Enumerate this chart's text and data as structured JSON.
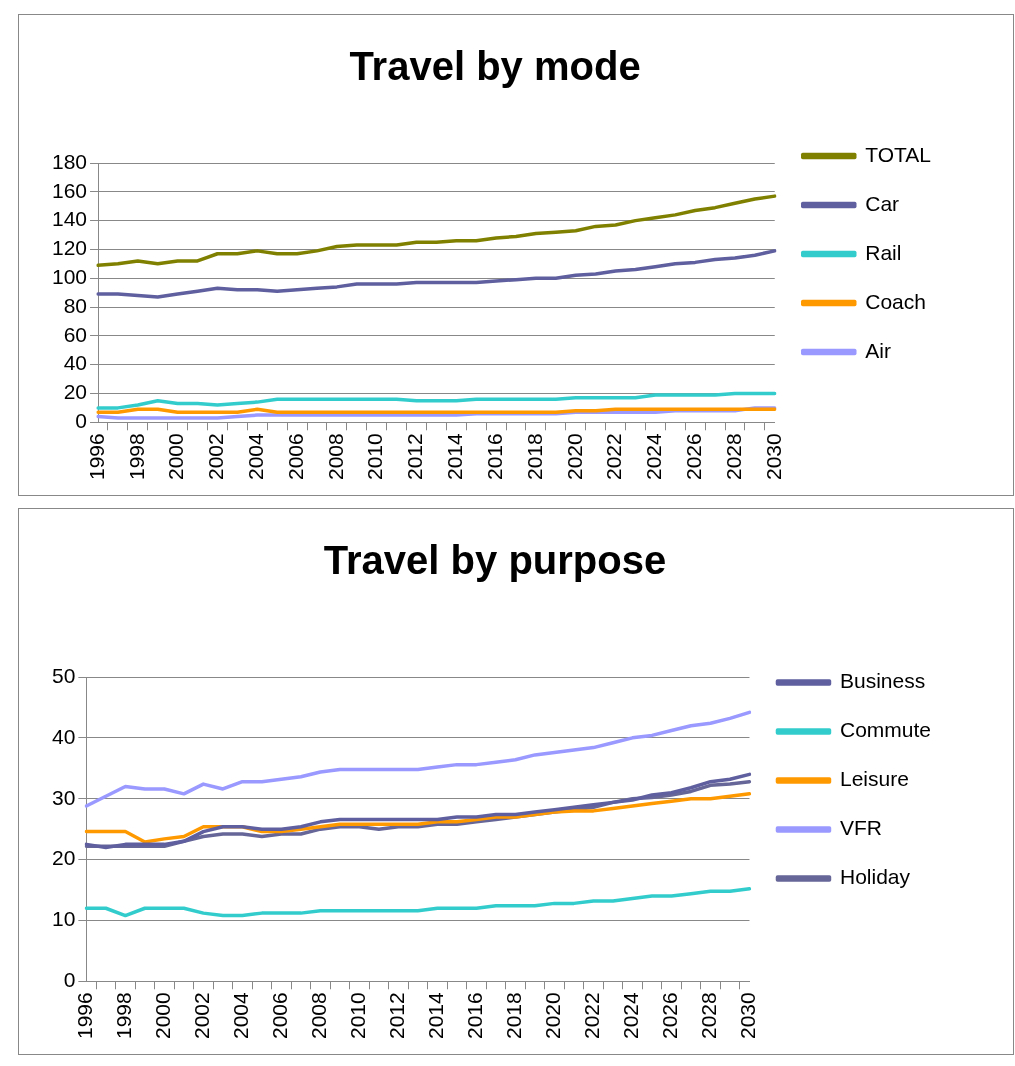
{
  "chart_data": [
    {
      "type": "line",
      "title": "Travel by mode",
      "categories": [
        "1996",
        null,
        "1998",
        null,
        "2000",
        null,
        "2002",
        null,
        "2004",
        null,
        "2006",
        null,
        "2008",
        null,
        "2010",
        null,
        "2012",
        null,
        "2014",
        null,
        "2016",
        null,
        "2018",
        null,
        "2020",
        null,
        "2022",
        null,
        "2024",
        null,
        "2026",
        null,
        "2028",
        null,
        "2030"
      ],
      "series": [
        {
          "name": "TOTAL",
          "color": "#808000",
          "values": [
            109,
            110,
            112,
            110,
            112,
            112,
            117,
            117,
            119,
            117,
            117,
            119,
            122,
            123,
            123,
            123,
            125,
            125,
            126,
            126,
            128,
            129,
            131,
            132,
            133,
            136,
            137,
            140,
            142,
            144,
            147,
            149,
            152,
            155,
            157
          ]
        },
        {
          "name": "Car",
          "color": "#5f5f9f",
          "values": [
            89,
            89,
            88,
            87,
            89,
            91,
            93,
            92,
            92,
            91,
            92,
            93,
            94,
            96,
            96,
            96,
            97,
            97,
            97,
            97,
            98,
            99,
            100,
            100,
            102,
            103,
            105,
            106,
            108,
            110,
            111,
            113,
            114,
            116,
            119
          ]
        },
        {
          "name": "Rail",
          "color": "#33cccc",
          "values": [
            10,
            10,
            12,
            15,
            13,
            13,
            12,
            13,
            14,
            16,
            16,
            16,
            16,
            16,
            16,
            16,
            15,
            15,
            15,
            16,
            16,
            16,
            16,
            16,
            17,
            17,
            17,
            17,
            19,
            19,
            19,
            19,
            20,
            20,
            20
          ]
        },
        {
          "name": "Coach",
          "color": "#ff9900",
          "values": [
            7,
            7,
            9,
            9,
            7,
            7,
            7,
            7,
            9,
            7,
            7,
            7,
            7,
            7,
            7,
            7,
            7,
            7,
            7,
            7,
            7,
            7,
            7,
            7,
            8,
            8,
            9,
            9,
            9,
            9,
            9,
            9,
            9,
            9,
            9
          ]
        },
        {
          "name": "Air",
          "color": "#9999ff",
          "values": [
            4,
            3,
            3,
            3,
            3,
            3,
            3,
            4,
            5,
            5,
            5,
            5,
            5,
            5,
            5,
            5,
            5,
            5,
            5,
            6,
            6,
            6,
            6,
            6,
            7,
            7,
            7,
            7,
            7,
            8,
            8,
            8,
            8,
            10,
            10
          ]
        }
      ],
      "ylim": [
        0,
        180
      ],
      "yticks": [
        0,
        20,
        40,
        60,
        80,
        100,
        120,
        140,
        160,
        180
      ],
      "grid": "y",
      "legend": "right",
      "marker": "none",
      "line_style": "solid"
    },
    {
      "type": "line",
      "title": "Travel by purpose",
      "categories": [
        "1996",
        null,
        "1998",
        null,
        "2000",
        null,
        "2002",
        null,
        "2004",
        null,
        "2006",
        null,
        "2008",
        null,
        "2010",
        null,
        "2012",
        null,
        "2014",
        null,
        "2016",
        null,
        "2018",
        null,
        "2020",
        null,
        "2022",
        null,
        "2024",
        null,
        "2026",
        null,
        "2028",
        null,
        "2030"
      ],
      "series": [
        {
          "name": "Business",
          "color": "#5f5f9f",
          "values": [
            22.5,
            22,
            22.5,
            22.5,
            22.5,
            23,
            24.6,
            25.4,
            25.4,
            25,
            25,
            25.4,
            26.2,
            26.6,
            26.6,
            26.6,
            26.6,
            26.6,
            26.6,
            27,
            27,
            27.4,
            27.4,
            27.8,
            28.2,
            28.6,
            29,
            29.4,
            29.8,
            30.6,
            31,
            31.8,
            32.8,
            33.2,
            34
          ]
        },
        {
          "name": "Commute",
          "color": "#33cccc",
          "values": [
            12,
            12,
            10.8,
            12,
            12,
            12,
            11.2,
            10.8,
            10.8,
            11.2,
            11.2,
            11.2,
            11.6,
            11.6,
            11.6,
            11.6,
            11.6,
            11.6,
            12,
            12,
            12,
            12.4,
            12.4,
            12.4,
            12.8,
            12.8,
            13.2,
            13.2,
            13.6,
            14,
            14,
            14.4,
            14.8,
            14.8,
            15.2
          ]
        },
        {
          "name": "Leisure",
          "color": "#ff9900",
          "values": [
            24.6,
            24.6,
            24.6,
            22.9,
            23.4,
            23.8,
            25.4,
            25.4,
            25.4,
            24.6,
            24.6,
            25,
            25.4,
            25.8,
            25.8,
            25.8,
            25.8,
            25.8,
            26.2,
            26.2,
            26.6,
            27,
            27,
            27.4,
            27.8,
            28,
            28,
            28.4,
            28.8,
            29.2,
            29.6,
            30,
            30,
            30.4,
            30.8
          ]
        },
        {
          "name": "VFR",
          "color": "#9999ff",
          "values": [
            28.8,
            30.4,
            32,
            31.6,
            31.6,
            30.8,
            32.4,
            31.6,
            32.8,
            32.8,
            33.2,
            33.6,
            34.4,
            34.8,
            34.8,
            34.8,
            34.8,
            34.8,
            35.2,
            35.6,
            35.6,
            36,
            36.4,
            37.2,
            37.6,
            38,
            38.4,
            39.2,
            40,
            40.4,
            41.2,
            42,
            42.4,
            43.2,
            44.2
          ]
        },
        {
          "name": "Holiday",
          "color": "#666699",
          "values": [
            22.2,
            22.2,
            22.2,
            22.2,
            22.2,
            23,
            23.8,
            24.2,
            24.2,
            23.8,
            24.2,
            24.2,
            25,
            25.4,
            25.4,
            25,
            25.4,
            25.4,
            25.8,
            25.8,
            26.2,
            26.6,
            27,
            27.4,
            27.8,
            28.2,
            28.6,
            29.4,
            30,
            30.2,
            30.6,
            31.2,
            32.2,
            32.4,
            32.8
          ]
        }
      ],
      "ylim": [
        0,
        50
      ],
      "yticks": [
        0,
        10,
        20,
        30,
        40,
        50
      ],
      "grid": "y",
      "legend": "right",
      "marker": "none",
      "line_style": "solid"
    }
  ]
}
